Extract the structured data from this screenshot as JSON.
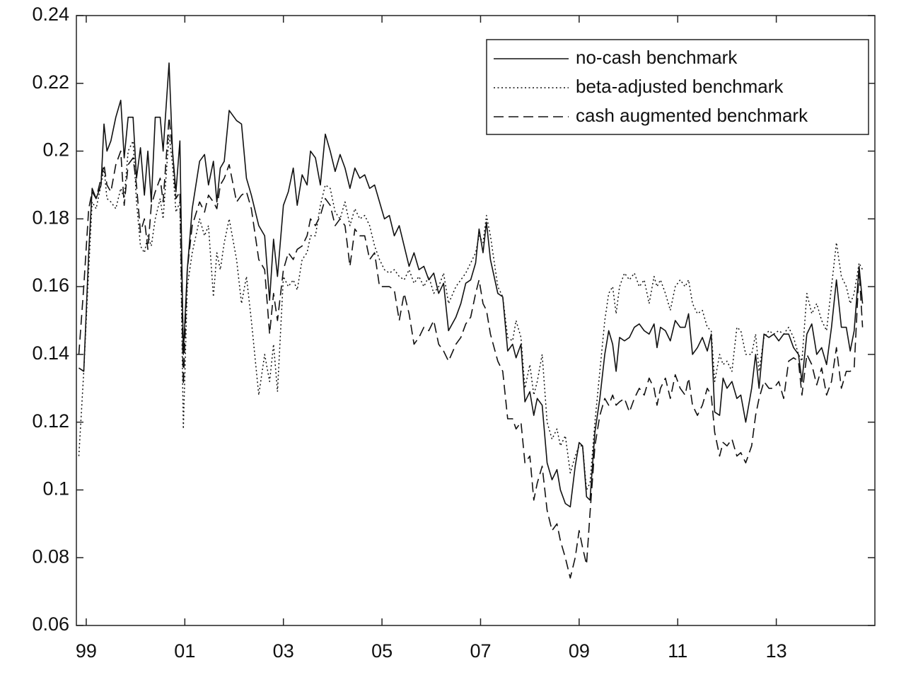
{
  "chart_data": {
    "type": "line",
    "legend": "upper right",
    "xlim": [
      1998.8,
      2015.0
    ],
    "ylim": [
      0.06,
      0.24
    ],
    "xticks": [
      {
        "value": 1999,
        "label": "99"
      },
      {
        "value": 2001,
        "label": "01"
      },
      {
        "value": 2003,
        "label": "03"
      },
      {
        "value": 2005,
        "label": "05"
      },
      {
        "value": 2007,
        "label": "07"
      },
      {
        "value": 2009,
        "label": "09"
      },
      {
        "value": 2011,
        "label": "11"
      },
      {
        "value": 2013,
        "label": "13"
      }
    ],
    "yticks": [
      0.06,
      0.08,
      0.1,
      0.12,
      0.14,
      0.16,
      0.18,
      0.2,
      0.22,
      0.24
    ],
    "x": [
      1998.85,
      1998.95,
      1999.05,
      1999.12,
      1999.2,
      1999.3,
      1999.36,
      1999.42,
      1999.5,
      1999.6,
      1999.7,
      1999.77,
      1999.85,
      1999.95,
      2000.02,
      2000.1,
      2000.18,
      2000.25,
      2000.32,
      2000.4,
      2000.5,
      2000.56,
      2000.68,
      2000.75,
      2000.82,
      2000.9,
      2000.97,
      2001.05,
      2001.15,
      2001.3,
      2001.4,
      2001.48,
      2001.58,
      2001.65,
      2001.72,
      2001.8,
      2001.9,
      2002.05,
      2002.15,
      2002.25,
      2002.35,
      2002.5,
      2002.62,
      2002.72,
      2002.8,
      2002.88,
      2003.0,
      2003.1,
      2003.2,
      2003.28,
      2003.38,
      2003.48,
      2003.55,
      2003.65,
      2003.75,
      2003.85,
      2003.95,
      2004.05,
      2004.15,
      2004.25,
      2004.35,
      2004.45,
      2004.55,
      2004.65,
      2004.75,
      2004.85,
      2004.95,
      2005.05,
      2005.15,
      2005.25,
      2005.35,
      2005.45,
      2005.55,
      2005.65,
      2005.75,
      2005.85,
      2005.95,
      2006.05,
      2006.15,
      2006.25,
      2006.35,
      2006.5,
      2006.6,
      2006.7,
      2006.8,
      2006.9,
      2006.97,
      2007.05,
      2007.12,
      2007.2,
      2007.35,
      2007.45,
      2007.55,
      2007.65,
      2007.72,
      2007.82,
      2007.9,
      2008.0,
      2008.08,
      2008.15,
      2008.25,
      2008.35,
      2008.45,
      2008.55,
      2008.62,
      2008.72,
      2008.82,
      2008.92,
      2009.0,
      2009.07,
      2009.15,
      2009.22,
      2009.32,
      2009.42,
      2009.52,
      2009.6,
      2009.68,
      2009.75,
      2009.82,
      2009.92,
      2010.02,
      2010.12,
      2010.22,
      2010.32,
      2010.42,
      2010.52,
      2010.58,
      2010.65,
      2010.75,
      2010.85,
      2010.95,
      2011.05,
      2011.15,
      2011.22,
      2011.3,
      2011.4,
      2011.5,
      2011.6,
      2011.68,
      2011.75,
      2011.85,
      2011.92,
      2012.0,
      2012.1,
      2012.2,
      2012.28,
      2012.38,
      2012.5,
      2012.58,
      2012.65,
      2012.75,
      2012.85,
      2012.95,
      2013.05,
      2013.15,
      2013.25,
      2013.35,
      2013.45,
      2013.52,
      2013.62,
      2013.72,
      2013.82,
      2013.92,
      2014.02,
      2014.12,
      2014.22,
      2014.32,
      2014.42,
      2014.5,
      2014.58,
      2014.68,
      2014.75
    ],
    "series": [
      {
        "name": "no-cash benchmark",
        "color": "#111111",
        "style": "solid",
        "values": [
          0.136,
          0.135,
          0.17,
          0.189,
          0.186,
          0.19,
          0.208,
          0.2,
          0.203,
          0.21,
          0.215,
          0.198,
          0.21,
          0.21,
          0.192,
          0.201,
          0.187,
          0.2,
          0.185,
          0.21,
          0.21,
          0.2,
          0.226,
          0.2,
          0.188,
          0.203,
          0.14,
          0.165,
          0.183,
          0.197,
          0.199,
          0.19,
          0.197,
          0.185,
          0.195,
          0.197,
          0.212,
          0.209,
          0.208,
          0.192,
          0.187,
          0.178,
          0.175,
          0.156,
          0.174,
          0.163,
          0.184,
          0.188,
          0.195,
          0.184,
          0.193,
          0.19,
          0.2,
          0.198,
          0.19,
          0.205,
          0.2,
          0.194,
          0.199,
          0.195,
          0.189,
          0.195,
          0.192,
          0.193,
          0.189,
          0.19,
          0.185,
          0.18,
          0.181,
          0.175,
          0.178,
          0.172,
          0.166,
          0.17,
          0.165,
          0.166,
          0.162,
          0.164,
          0.158,
          0.161,
          0.147,
          0.151,
          0.155,
          0.161,
          0.162,
          0.167,
          0.177,
          0.17,
          0.179,
          0.168,
          0.158,
          0.157,
          0.141,
          0.143,
          0.139,
          0.143,
          0.126,
          0.129,
          0.122,
          0.127,
          0.125,
          0.108,
          0.103,
          0.106,
          0.1,
          0.096,
          0.095,
          0.107,
          0.114,
          0.113,
          0.098,
          0.097,
          0.117,
          0.127,
          0.14,
          0.147,
          0.143,
          0.135,
          0.145,
          0.144,
          0.145,
          0.148,
          0.149,
          0.147,
          0.146,
          0.149,
          0.142,
          0.148,
          0.147,
          0.144,
          0.15,
          0.148,
          0.148,
          0.152,
          0.14,
          0.142,
          0.145,
          0.141,
          0.146,
          0.123,
          0.122,
          0.133,
          0.13,
          0.132,
          0.127,
          0.128,
          0.12,
          0.13,
          0.14,
          0.13,
          0.146,
          0.145,
          0.146,
          0.144,
          0.146,
          0.146,
          0.142,
          0.14,
          0.132,
          0.146,
          0.149,
          0.14,
          0.142,
          0.137,
          0.148,
          0.162,
          0.148,
          0.148,
          0.141,
          0.147,
          0.166,
          0.155
        ]
      },
      {
        "name": "beta-adjusted benchmark",
        "color": "#111111",
        "style": "dotted",
        "values": [
          0.11,
          0.135,
          0.165,
          0.185,
          0.183,
          0.19,
          0.195,
          0.186,
          0.185,
          0.183,
          0.189,
          0.186,
          0.2,
          0.203,
          0.185,
          0.172,
          0.17,
          0.175,
          0.172,
          0.18,
          0.186,
          0.18,
          0.205,
          0.196,
          0.182,
          0.185,
          0.118,
          0.16,
          0.17,
          0.18,
          0.175,
          0.178,
          0.157,
          0.17,
          0.165,
          0.173,
          0.18,
          0.168,
          0.155,
          0.163,
          0.15,
          0.128,
          0.14,
          0.132,
          0.143,
          0.129,
          0.163,
          0.16,
          0.162,
          0.159,
          0.168,
          0.17,
          0.175,
          0.175,
          0.184,
          0.19,
          0.189,
          0.182,
          0.18,
          0.185,
          0.178,
          0.183,
          0.18,
          0.181,
          0.178,
          0.172,
          0.168,
          0.165,
          0.164,
          0.165,
          0.163,
          0.162,
          0.165,
          0.161,
          0.163,
          0.16,
          0.163,
          0.158,
          0.16,
          0.164,
          0.155,
          0.16,
          0.162,
          0.164,
          0.167,
          0.17,
          0.175,
          0.173,
          0.181,
          0.175,
          0.16,
          0.157,
          0.145,
          0.144,
          0.15,
          0.145,
          0.13,
          0.137,
          0.128,
          0.132,
          0.14,
          0.12,
          0.115,
          0.118,
          0.113,
          0.116,
          0.105,
          0.11,
          0.113,
          0.113,
          0.1,
          0.102,
          0.12,
          0.135,
          0.15,
          0.158,
          0.16,
          0.152,
          0.16,
          0.164,
          0.162,
          0.164,
          0.16,
          0.162,
          0.155,
          0.163,
          0.16,
          0.162,
          0.158,
          0.153,
          0.16,
          0.162,
          0.16,
          0.162,
          0.155,
          0.152,
          0.153,
          0.148,
          0.147,
          0.132,
          0.14,
          0.137,
          0.138,
          0.135,
          0.148,
          0.147,
          0.14,
          0.14,
          0.146,
          0.135,
          0.145,
          0.147,
          0.146,
          0.147,
          0.146,
          0.148,
          0.145,
          0.14,
          0.138,
          0.158,
          0.152,
          0.155,
          0.15,
          0.147,
          0.16,
          0.173,
          0.163,
          0.16,
          0.155,
          0.158,
          0.167,
          0.165
        ]
      },
      {
        "name": "cash augmented benchmark",
        "color": "#111111",
        "style": "dashed",
        "values": [
          0.14,
          0.16,
          0.183,
          0.188,
          0.186,
          0.192,
          0.196,
          0.19,
          0.188,
          0.196,
          0.2,
          0.184,
          0.196,
          0.198,
          0.19,
          0.176,
          0.18,
          0.171,
          0.184,
          0.188,
          0.192,
          0.185,
          0.21,
          0.2,
          0.186,
          0.188,
          0.131,
          0.165,
          0.178,
          0.185,
          0.182,
          0.187,
          0.185,
          0.183,
          0.19,
          0.192,
          0.196,
          0.185,
          0.187,
          0.188,
          0.183,
          0.168,
          0.165,
          0.146,
          0.158,
          0.15,
          0.165,
          0.17,
          0.168,
          0.171,
          0.172,
          0.175,
          0.18,
          0.178,
          0.181,
          0.186,
          0.184,
          0.178,
          0.18,
          0.178,
          0.166,
          0.177,
          0.175,
          0.175,
          0.168,
          0.17,
          0.16,
          0.16,
          0.16,
          0.159,
          0.15,
          0.158,
          0.152,
          0.143,
          0.145,
          0.148,
          0.147,
          0.15,
          0.143,
          0.141,
          0.138,
          0.143,
          0.145,
          0.149,
          0.151,
          0.158,
          0.162,
          0.155,
          0.153,
          0.146,
          0.138,
          0.135,
          0.121,
          0.121,
          0.118,
          0.12,
          0.108,
          0.11,
          0.097,
          0.102,
          0.107,
          0.094,
          0.088,
          0.09,
          0.085,
          0.08,
          0.074,
          0.08,
          0.088,
          0.083,
          0.078,
          0.093,
          0.113,
          0.122,
          0.127,
          0.125,
          0.128,
          0.125,
          0.126,
          0.127,
          0.123,
          0.127,
          0.13,
          0.128,
          0.133,
          0.13,
          0.125,
          0.13,
          0.133,
          0.127,
          0.134,
          0.13,
          0.128,
          0.133,
          0.125,
          0.122,
          0.125,
          0.13,
          0.128,
          0.117,
          0.11,
          0.114,
          0.113,
          0.115,
          0.11,
          0.111,
          0.108,
          0.113,
          0.122,
          0.127,
          0.132,
          0.13,
          0.13,
          0.132,
          0.127,
          0.138,
          0.139,
          0.138,
          0.128,
          0.14,
          0.137,
          0.131,
          0.136,
          0.128,
          0.132,
          0.142,
          0.13,
          0.135,
          0.135,
          0.136,
          0.165,
          0.148
        ]
      }
    ]
  }
}
